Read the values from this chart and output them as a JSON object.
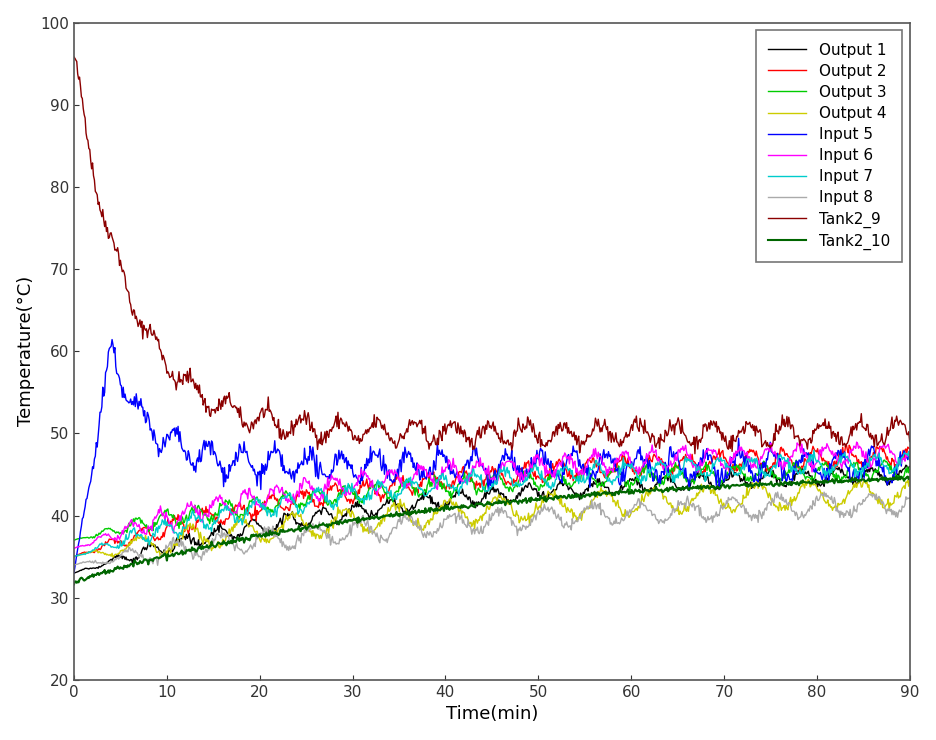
{
  "title": "",
  "xlabel": "Time(min)",
  "ylabel": "Temperature(°C)",
  "xlim": [
    0,
    90
  ],
  "ylim": [
    20,
    100
  ],
  "yticks": [
    20,
    30,
    40,
    50,
    60,
    70,
    80,
    90,
    100
  ],
  "xticks": [
    0,
    10,
    20,
    30,
    40,
    50,
    60,
    70,
    80,
    90
  ],
  "legend_entries": [
    "Output 1",
    "Output 2",
    "Output 3",
    "Output 4",
    "Input 5",
    "Input 6",
    "Input 7",
    "Input 8",
    "Tank2_9",
    "Tank2_10"
  ],
  "line_colors": [
    "#000000",
    "#ff0000",
    "#00cc00",
    "#cccc00",
    "#0000ff",
    "#ff00ff",
    "#00cccc",
    "#aaaaaa",
    "#8b0000",
    "#006600"
  ],
  "line_widths": [
    1.0,
    1.0,
    1.0,
    1.0,
    1.0,
    1.0,
    1.0,
    1.0,
    1.0,
    1.5
  ],
  "seed": 42,
  "total_points": 900,
  "time_max": 90
}
